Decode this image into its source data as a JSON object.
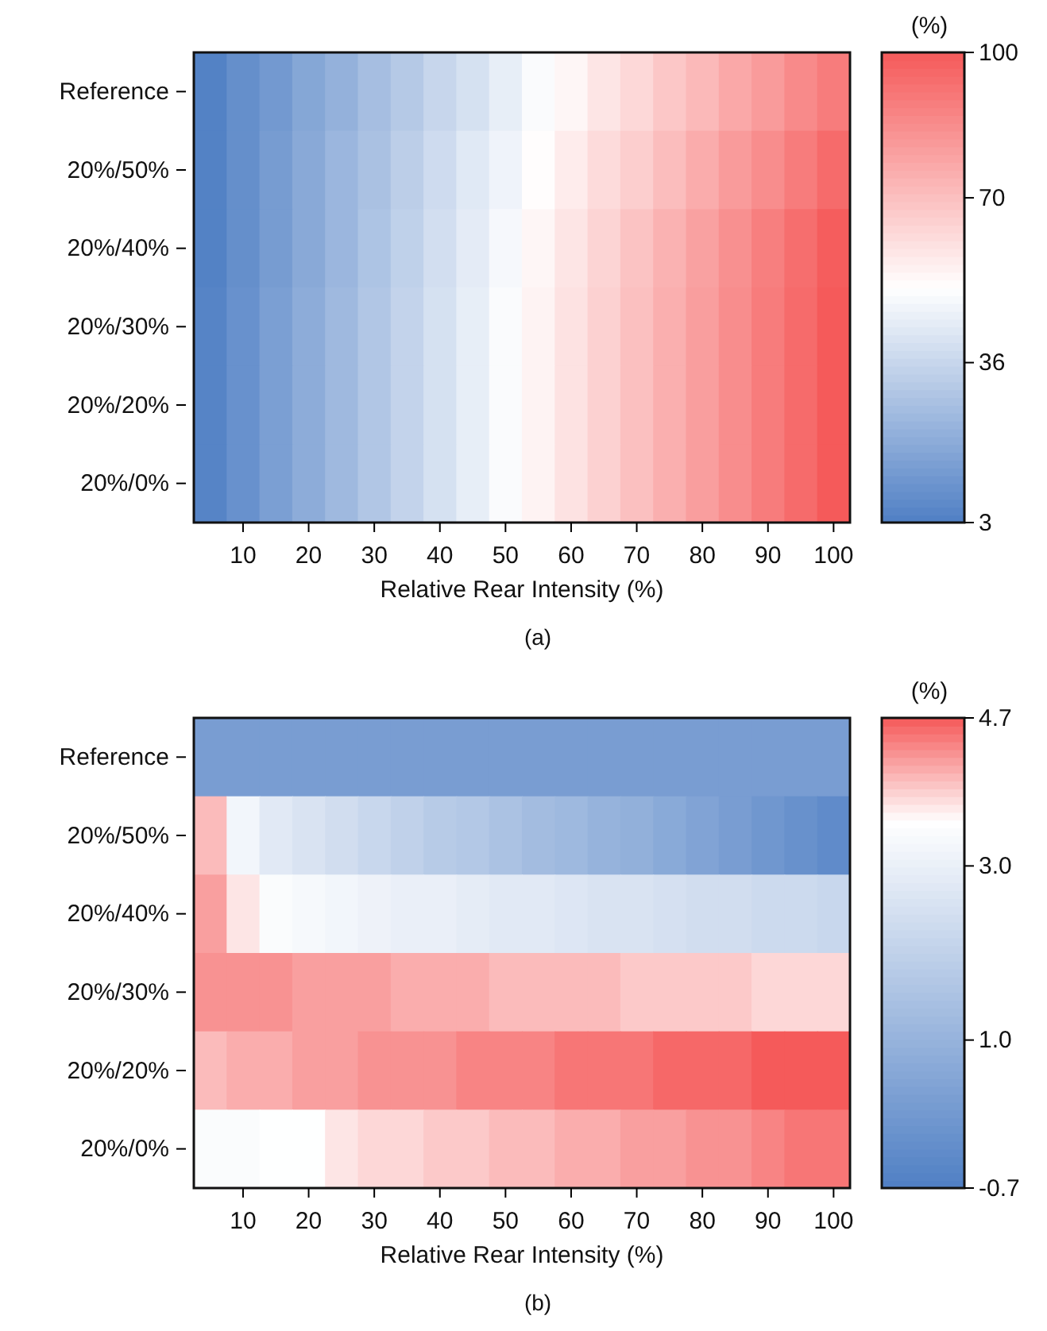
{
  "chart_data": [
    {
      "type": "heatmap",
      "xlabel": "Relative Rear Intensity (%)",
      "clabel": "(%)",
      "annotations": [
        "(a)"
      ],
      "categories": [
        null,
        "10",
        null,
        "20",
        null,
        "30",
        null,
        "40",
        null,
        "50",
        null,
        "60",
        null,
        "70",
        null,
        "80",
        null,
        "90",
        null,
        "100"
      ],
      "y_categories": [
        "Reference",
        "20%/50%",
        "20%/40%",
        "20%/30%",
        "20%/20%",
        "20%/0%"
      ],
      "cells": [
        [
          4,
          9,
          13,
          18,
          22,
          27,
          31,
          36,
          40,
          45,
          50,
          54,
          59,
          63,
          68,
          72,
          77,
          81,
          86,
          90
        ],
        [
          4,
          9,
          14,
          19,
          24,
          28,
          33,
          38,
          43,
          47,
          52,
          57,
          62,
          66,
          71,
          76,
          81,
          85,
          90,
          95
        ],
        [
          4,
          9,
          14,
          19,
          24,
          29,
          34,
          39,
          44,
          49,
          54,
          59,
          64,
          69,
          74,
          79,
          84,
          89,
          94,
          99
        ],
        [
          5,
          10,
          15,
          20,
          25,
          30,
          35,
          40,
          45,
          50,
          55,
          60,
          65,
          70,
          75,
          80,
          85,
          90,
          95,
          100
        ],
        [
          5,
          10,
          15,
          20,
          25,
          30,
          35,
          40,
          45,
          50,
          55,
          60,
          65,
          70,
          75,
          80,
          85,
          90,
          95,
          100
        ],
        [
          5,
          10,
          15,
          20,
          25,
          30,
          35,
          40,
          45,
          50,
          55,
          60,
          65,
          70,
          75,
          80,
          85,
          90,
          95,
          100
        ]
      ],
      "clim": [
        3,
        100
      ],
      "cticks": [
        3,
        36,
        70,
        100
      ]
    },
    {
      "type": "heatmap",
      "xlabel": "Relative Rear Intensity (%)",
      "clabel": "(%)",
      "annotations": [
        "(b)"
      ],
      "categories": [
        null,
        "10",
        null,
        "20",
        null,
        "30",
        null,
        "40",
        null,
        "50",
        null,
        "60",
        null,
        "70",
        null,
        "80",
        null,
        "90",
        null,
        "100"
      ],
      "y_categories": [
        "Reference",
        "20%/50%",
        "20%/40%",
        "20%/30%",
        "20%/20%",
        "20%/0%"
      ],
      "cells": [
        [
          0.3,
          0.3,
          0.3,
          0.3,
          0.3,
          0.3,
          0.3,
          0.3,
          0.3,
          0.3,
          0.3,
          0.3,
          0.3,
          0.3,
          0.3,
          0.3,
          0.3,
          0.3,
          0.3,
          0.3
        ],
        [
          4.0,
          3.2,
          2.8,
          2.6,
          2.4,
          2.2,
          2.0,
          1.8,
          1.7,
          1.5,
          1.3,
          1.2,
          1.0,
          0.9,
          0.7,
          0.5,
          0.3,
          0.1,
          -0.1,
          -0.3
        ],
        [
          4.2,
          3.7,
          3.4,
          3.3,
          3.2,
          3.1,
          3.0,
          3.0,
          2.9,
          2.8,
          2.8,
          2.7,
          2.6,
          2.6,
          2.5,
          2.4,
          2.4,
          2.3,
          2.3,
          2.2
        ],
        [
          4.3,
          4.3,
          4.3,
          4.2,
          4.2,
          4.2,
          4.1,
          4.1,
          4.1,
          4.0,
          4.0,
          4.0,
          4.0,
          3.9,
          3.9,
          3.9,
          3.9,
          3.8,
          3.8,
          3.8
        ],
        [
          4.0,
          4.1,
          4.1,
          4.2,
          4.2,
          4.3,
          4.3,
          4.3,
          4.4,
          4.4,
          4.4,
          4.5,
          4.5,
          4.5,
          4.6,
          4.6,
          4.6,
          4.7,
          4.7,
          4.7
        ],
        [
          3.4,
          3.4,
          3.5,
          3.5,
          3.7,
          3.8,
          3.8,
          3.9,
          3.9,
          4.0,
          4.0,
          4.1,
          4.1,
          4.2,
          4.2,
          4.3,
          4.3,
          4.4,
          4.5,
          4.5
        ]
      ],
      "clim": [
        -0.7,
        4.7
      ],
      "cticks": [
        -0.7,
        {
          "value": 1.0,
          "label": "1.0"
        },
        {
          "value": 3.0,
          "label": "3.0"
        },
        4.7
      ]
    }
  ]
}
